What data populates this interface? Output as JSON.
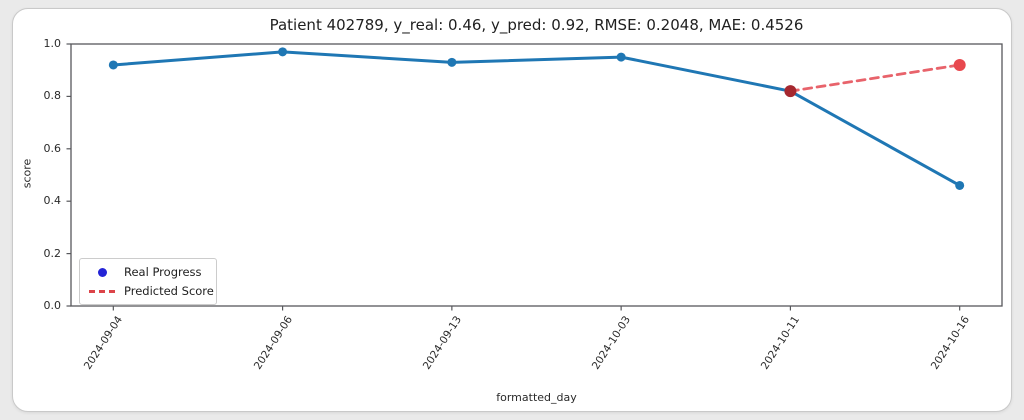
{
  "page": {
    "background_color": "#eaeaea",
    "card_background_color": "#ffffff",
    "card_border_color": "#c9c9c9"
  },
  "chart_data": {
    "type": "line",
    "title": "Patient 402789, y_real: 0.46, y_pred: 0.92, RMSE: 0.2048, MAE: 0.4526",
    "xlabel": "formatted_day",
    "ylabel": "score",
    "categories": [
      "2024-09-04",
      "2024-09-06",
      "2024-09-13",
      "2024-10-03",
      "2024-10-11",
      "2024-10-16"
    ],
    "ylim": [
      0.0,
      1.0
    ],
    "ytick_labels": [
      "0.0",
      "0.2",
      "0.4",
      "0.6",
      "0.8",
      "1.0"
    ],
    "grid": false,
    "spine_color": "#57585c",
    "series": [
      {
        "name": "Real Progress",
        "color": "#1f77b4",
        "line_style": "solid",
        "line_width": 3,
        "marker": "circle",
        "marker_radius": 4.5,
        "marker_colors": [
          "#1f77b4",
          "#1f77b4",
          "#1f77b4",
          "#1f77b4",
          "#1f77b4",
          "#1f77b4"
        ],
        "x": [
          "2024-09-04",
          "2024-09-06",
          "2024-09-13",
          "2024-10-03",
          "2024-10-11",
          "2024-10-16"
        ],
        "values": [
          0.92,
          0.97,
          0.93,
          0.95,
          0.82,
          0.46
        ]
      },
      {
        "name": "Predicted Score",
        "color": "#e8636b",
        "line_style": "dashed",
        "line_width": 2.8,
        "marker": "circle",
        "marker_radius": 6,
        "marker_colors": [
          "#a5282f",
          "#e8484e"
        ],
        "x": [
          "2024-10-11",
          "2024-10-16"
        ],
        "values": [
          0.82,
          0.92
        ]
      }
    ],
    "legend": {
      "position": "lower left",
      "entries": [
        {
          "label": "Real Progress",
          "marker": "dot",
          "color": "#2424d6"
        },
        {
          "label": "Predicted Score",
          "marker": "dashes",
          "color": "#dc4449"
        }
      ]
    }
  }
}
